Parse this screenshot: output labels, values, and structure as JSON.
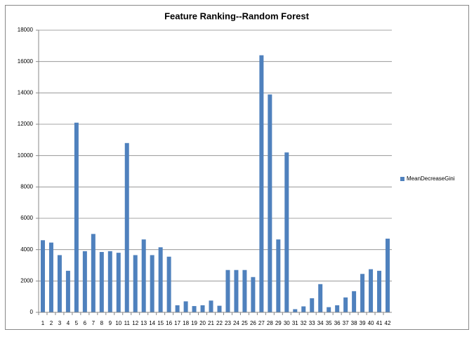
{
  "chart_data": {
    "type": "bar",
    "title": "Feature Ranking--Random Forest",
    "categories": [
      "1",
      "2",
      "3",
      "4",
      "5",
      "6",
      "7",
      "8",
      "9",
      "10",
      "11",
      "12",
      "13",
      "14",
      "15",
      "16",
      "17",
      "18",
      "19",
      "20",
      "21",
      "22",
      "23",
      "24",
      "25",
      "26",
      "27",
      "28",
      "29",
      "30",
      "31",
      "32",
      "33",
      "34",
      "35",
      "36",
      "37",
      "38",
      "39",
      "40",
      "41",
      "42"
    ],
    "series": [
      {
        "name": "MeanDecreaseGini",
        "color": "#4f81bd",
        "values": [
          4600,
          4450,
          3650,
          2650,
          12100,
          3900,
          5000,
          3850,
          3900,
          3800,
          10800,
          3650,
          4650,
          3650,
          4150,
          3550,
          450,
          700,
          400,
          450,
          750,
          420,
          2700,
          2700,
          2700,
          2250,
          16400,
          13900,
          4650,
          10200,
          200,
          380,
          900,
          1800,
          330,
          450,
          950,
          1350,
          2450,
          2750,
          2650,
          4700
        ]
      }
    ],
    "ylim": [
      0,
      18000
    ],
    "yticks": [
      0,
      2000,
      4000,
      6000,
      8000,
      10000,
      12000,
      14000,
      16000,
      18000
    ],
    "grid": true,
    "legend": "right"
  }
}
